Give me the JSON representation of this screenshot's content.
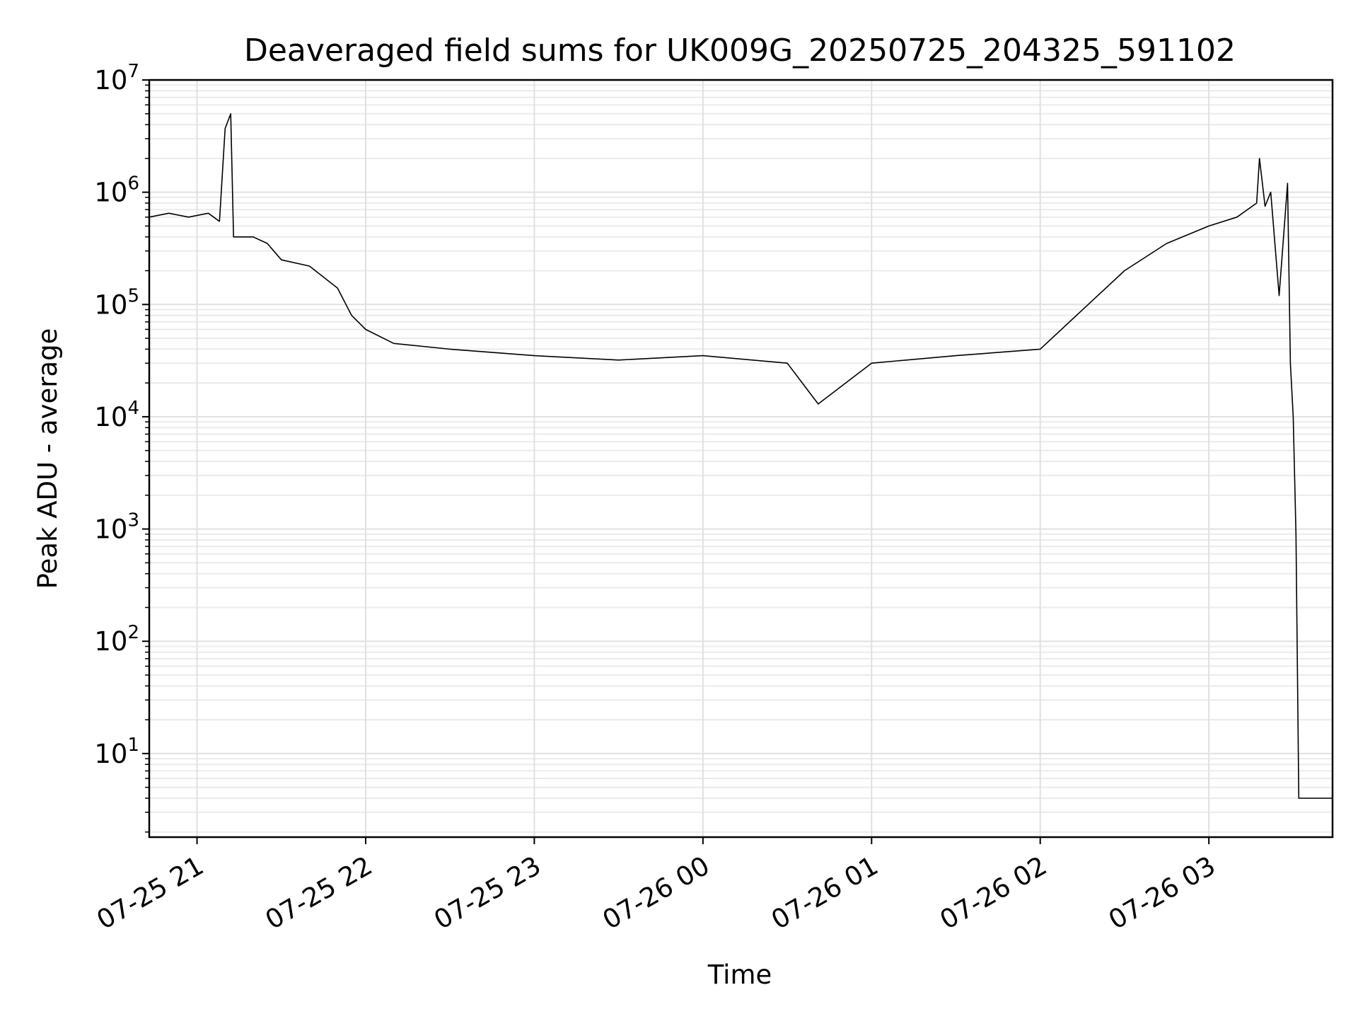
{
  "chart_data": {
    "type": "line",
    "title": "Deaveraged field sums for UK009G_20250725_204325_591102",
    "xlabel": "Time",
    "ylabel": "Peak ADU - average",
    "y_scale": "log",
    "ylim": [
      1.8,
      10000000
    ],
    "xlim": [
      "2025-07-25 20:43",
      "2025-07-26 03:44"
    ],
    "grid": true,
    "x_ticks": [
      {
        "value": "2025-07-25 21:00",
        "label": "07-25 21"
      },
      {
        "value": "2025-07-25 22:00",
        "label": "07-25 22"
      },
      {
        "value": "2025-07-25 23:00",
        "label": "07-25 23"
      },
      {
        "value": "2025-07-26 00:00",
        "label": "07-26 00"
      },
      {
        "value": "2025-07-26 01:00",
        "label": "07-26 01"
      },
      {
        "value": "2025-07-26 02:00",
        "label": "07-26 02"
      },
      {
        "value": "2025-07-26 03:00",
        "label": "07-26 03"
      }
    ],
    "y_ticks": [
      {
        "value": 10,
        "base": "10",
        "exp": "1"
      },
      {
        "value": 100,
        "base": "10",
        "exp": "2"
      },
      {
        "value": 1000,
        "base": "10",
        "exp": "3"
      },
      {
        "value": 10000,
        "base": "10",
        "exp": "4"
      },
      {
        "value": 100000,
        "base": "10",
        "exp": "5"
      },
      {
        "value": 1000000,
        "base": "10",
        "exp": "6"
      },
      {
        "value": 10000000,
        "base": "10",
        "exp": "7"
      }
    ],
    "series": [
      {
        "color": "#000000",
        "points": [
          [
            "2025-07-25 20:43",
            600000
          ],
          [
            "2025-07-25 20:50",
            650000
          ],
          [
            "2025-07-25 20:57",
            600000
          ],
          [
            "2025-07-25 21:04",
            650000
          ],
          [
            "2025-07-25 21:08",
            550000
          ],
          [
            "2025-07-25 21:10",
            3700000
          ],
          [
            "2025-07-25 21:12",
            5000000
          ],
          [
            "2025-07-25 21:13",
            400000
          ],
          [
            "2025-07-25 21:20",
            400000
          ],
          [
            "2025-07-25 21:25",
            350000
          ],
          [
            "2025-07-25 21:30",
            250000
          ],
          [
            "2025-07-25 21:40",
            220000
          ],
          [
            "2025-07-25 21:50",
            140000
          ],
          [
            "2025-07-25 21:55",
            80000
          ],
          [
            "2025-07-25 22:00",
            60000
          ],
          [
            "2025-07-25 22:10",
            45000
          ],
          [
            "2025-07-25 22:30",
            40000
          ],
          [
            "2025-07-25 23:00",
            35000
          ],
          [
            "2025-07-25 23:30",
            32000
          ],
          [
            "2025-07-26 00:00",
            35000
          ],
          [
            "2025-07-26 00:30",
            30000
          ],
          [
            "2025-07-26 00:41",
            13000
          ],
          [
            "2025-07-26 01:00",
            30000
          ],
          [
            "2025-07-26 01:30",
            35000
          ],
          [
            "2025-07-26 02:00",
            40000
          ],
          [
            "2025-07-26 02:30",
            200000
          ],
          [
            "2025-07-26 02:45",
            350000
          ],
          [
            "2025-07-26 03:00",
            500000
          ],
          [
            "2025-07-26 03:10",
            600000
          ],
          [
            "2025-07-26 03:17",
            800000
          ],
          [
            "2025-07-26 03:18",
            2000000
          ],
          [
            "2025-07-26 03:20",
            750000
          ],
          [
            "2025-07-26 03:22",
            1000000
          ],
          [
            "2025-07-26 03:25",
            120000
          ],
          [
            "2025-07-26 03:28",
            1200000
          ],
          [
            "2025-07-26 03:29",
            30000
          ],
          [
            "2025-07-26 03:30",
            10000
          ],
          [
            "2025-07-26 03:31",
            900
          ],
          [
            "2025-07-26 03:32",
            4
          ],
          [
            "2025-07-26 03:44",
            4
          ]
        ]
      }
    ]
  }
}
